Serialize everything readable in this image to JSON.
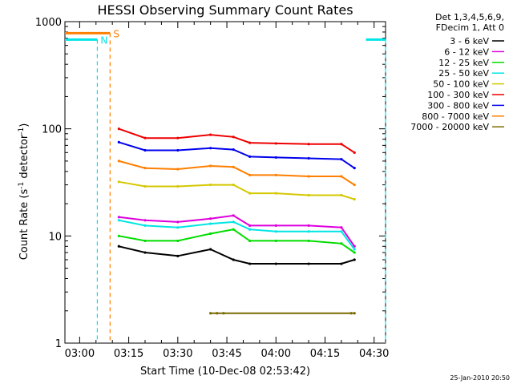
{
  "chart_data": {
    "type": "line",
    "title": "HESSI Observing Summary Count Rates",
    "xlabel": "Start Time (10-Dec-08 02:53:42)",
    "ylabel_main": "Count Rate (s",
    "ylabel_sup1": "-1",
    "ylabel_mid": " detector",
    "ylabel_sup2": "-1",
    "ylabel_end": ")",
    "yscale": "log",
    "ylim": [
      1,
      1000
    ],
    "xlim_minutes_after_0300": [
      -4.5,
      93.5
    ],
    "x_ticks": [
      {
        "label": "03:00",
        "min": 0
      },
      {
        "label": "03:15",
        "min": 15
      },
      {
        "label": "03:30",
        "min": 30
      },
      {
        "label": "03:45",
        "min": 45
      },
      {
        "label": "04:00",
        "min": 60
      },
      {
        "label": "04:15",
        "min": 75
      },
      {
        "label": "04:30",
        "min": 90
      }
    ],
    "y_ticks": [
      {
        "label": "1",
        "value": 1
      },
      {
        "label": "10",
        "value": 10
      },
      {
        "label": "100",
        "value": 100
      },
      {
        "label": "1000",
        "value": 1000
      }
    ],
    "legend_header": [
      "Det 1,3,4,5,6,9,",
      "FDecim 1, Att 0"
    ],
    "legend": [
      {
        "name": "3 - 6 keV",
        "color": "#000000"
      },
      {
        "name": "6 - 12 keV",
        "color": "#dd00dd"
      },
      {
        "name": "12 - 25 keV",
        "color": "#00dd00"
      },
      {
        "name": "25 - 50 keV",
        "color": "#00e5e5"
      },
      {
        "name": "50 - 100 keV",
        "color": "#d4c800"
      },
      {
        "name": "100 - 300 keV",
        "color": "#ee0000"
      },
      {
        "name": "300 - 800 keV",
        "color": "#0000ee"
      },
      {
        "name": "800 - 7000 keV",
        "color": "#ff7f00"
      },
      {
        "name": "7000 - 20000 keV",
        "color": "#7a6a00"
      }
    ],
    "series": [
      {
        "name": "3 - 6 keV",
        "color": "#000000",
        "x": [
          12,
          20,
          30,
          40,
          47,
          52,
          60,
          70,
          80,
          84
        ],
        "y": [
          8,
          7,
          6.5,
          7.5,
          6,
          5.5,
          5.5,
          5.5,
          5.5,
          6
        ]
      },
      {
        "name": "6 - 12 keV",
        "color": "#dd00dd",
        "x": [
          12,
          20,
          30,
          40,
          47,
          52,
          60,
          70,
          80,
          84
        ],
        "y": [
          15,
          14,
          13.5,
          14.5,
          15.5,
          12.5,
          12.5,
          12.5,
          12,
          8
        ]
      },
      {
        "name": "12 - 25 keV",
        "color": "#00dd00",
        "x": [
          12,
          20,
          30,
          40,
          47,
          52,
          60,
          70,
          80,
          84
        ],
        "y": [
          10,
          9,
          9,
          10.5,
          11.5,
          9,
          9,
          9,
          8.5,
          7
        ]
      },
      {
        "name": "25 - 50 keV",
        "color": "#00e5e5",
        "x": [
          12,
          20,
          30,
          40,
          47,
          52,
          60,
          70,
          80,
          84
        ],
        "y": [
          14,
          12.5,
          12,
          13,
          13.5,
          11.5,
          11,
          11,
          11,
          7.5
        ]
      },
      {
        "name": "50 - 100 keV",
        "color": "#d4c800",
        "x": [
          12,
          20,
          30,
          40,
          47,
          52,
          60,
          70,
          80,
          84
        ],
        "y": [
          32,
          29,
          29,
          30,
          30,
          25,
          25,
          24,
          24,
          22
        ]
      },
      {
        "name": "100 - 300 keV",
        "color": "#ee0000",
        "x": [
          12,
          20,
          30,
          40,
          47,
          52,
          60,
          70,
          80,
          84
        ],
        "y": [
          100,
          82,
          82,
          88,
          84,
          74,
          73,
          72,
          72,
          60
        ]
      },
      {
        "name": "300 - 800 keV",
        "color": "#0000ee",
        "x": [
          12,
          20,
          30,
          40,
          47,
          52,
          60,
          70,
          80,
          84
        ],
        "y": [
          75,
          63,
          63,
          66,
          64,
          55,
          54,
          53,
          52,
          43
        ]
      },
      {
        "name": "800 - 7000 keV",
        "color": "#ff7f00",
        "x": [
          12,
          20,
          30,
          40,
          47,
          52,
          60,
          70,
          80,
          84
        ],
        "y": [
          50,
          43,
          42,
          45,
          44,
          37,
          37,
          36,
          36,
          30
        ]
      },
      {
        "name": "7000 - 20000 keV",
        "color": "#7a6a00",
        "x": [
          40,
          42,
          44,
          83,
          84
        ],
        "y": [
          1.9,
          1.9,
          1.9,
          1.9,
          1.9
        ]
      }
    ],
    "flag_bars": [
      {
        "label": "S",
        "color": "#ff7f00",
        "x_start": -4.5,
        "x_end": 9.3,
        "value": 780
      },
      {
        "label": "N",
        "color": "#00e5e5",
        "x_start": -4.5,
        "x_end": 5.4,
        "value": 680
      },
      {
        "label": "",
        "color": "#00e5e5",
        "x_start": 87.5,
        "x_end": 93.5,
        "value": 680
      }
    ],
    "grid": false,
    "legend_position": "right"
  },
  "footer_date": "25-Jan-2010 20:50"
}
